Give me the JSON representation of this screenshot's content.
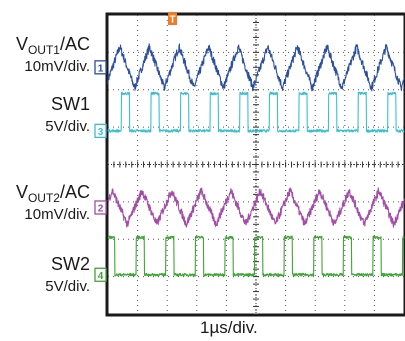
{
  "chart_data": {
    "type": "line",
    "title": "",
    "timebase": "1µs/div.",
    "trigger_marker": "T",
    "grid": true,
    "x_divisions": 10,
    "y_divisions": 8,
    "x_unit": "µs",
    "series": [
      {
        "name_main": "V",
        "name_sub": "OUT1",
        "name_suffix": "/AC",
        "scale": "10mV/div.",
        "marker": "1",
        "color": "#2b4f9e",
        "waveform": "triangle",
        "offset_div": 6.6,
        "amplitude_div": 0.55,
        "period_div": 1.0,
        "phase": 0.1
      },
      {
        "name_main": "SW1",
        "name_sub": "",
        "name_suffix": "",
        "scale": "5V/div.",
        "marker": "3",
        "color": "#3bbfd0",
        "waveform": "pulse",
        "offset_div": 4.9,
        "amplitude_div": 1.0,
        "period_div": 1.0,
        "duty": 0.28,
        "phase": 0.55
      },
      {
        "name_main": "V",
        "name_sub": "OUT2",
        "name_suffix": "/AC",
        "scale": "10mV/div.",
        "marker": "2",
        "color": "#a34da8",
        "waveform": "triangle",
        "offset_div": 2.85,
        "amplitude_div": 0.45,
        "period_div": 1.0,
        "phase": 0.35
      },
      {
        "name_main": "SW2",
        "name_sub": "",
        "name_suffix": "",
        "scale": "5V/div.",
        "marker": "4",
        "color": "#3fa535",
        "waveform": "pulse",
        "offset_div": 1.05,
        "amplitude_div": 1.0,
        "period_div": 1.0,
        "duty": 0.28,
        "phase": 0.05
      }
    ]
  }
}
